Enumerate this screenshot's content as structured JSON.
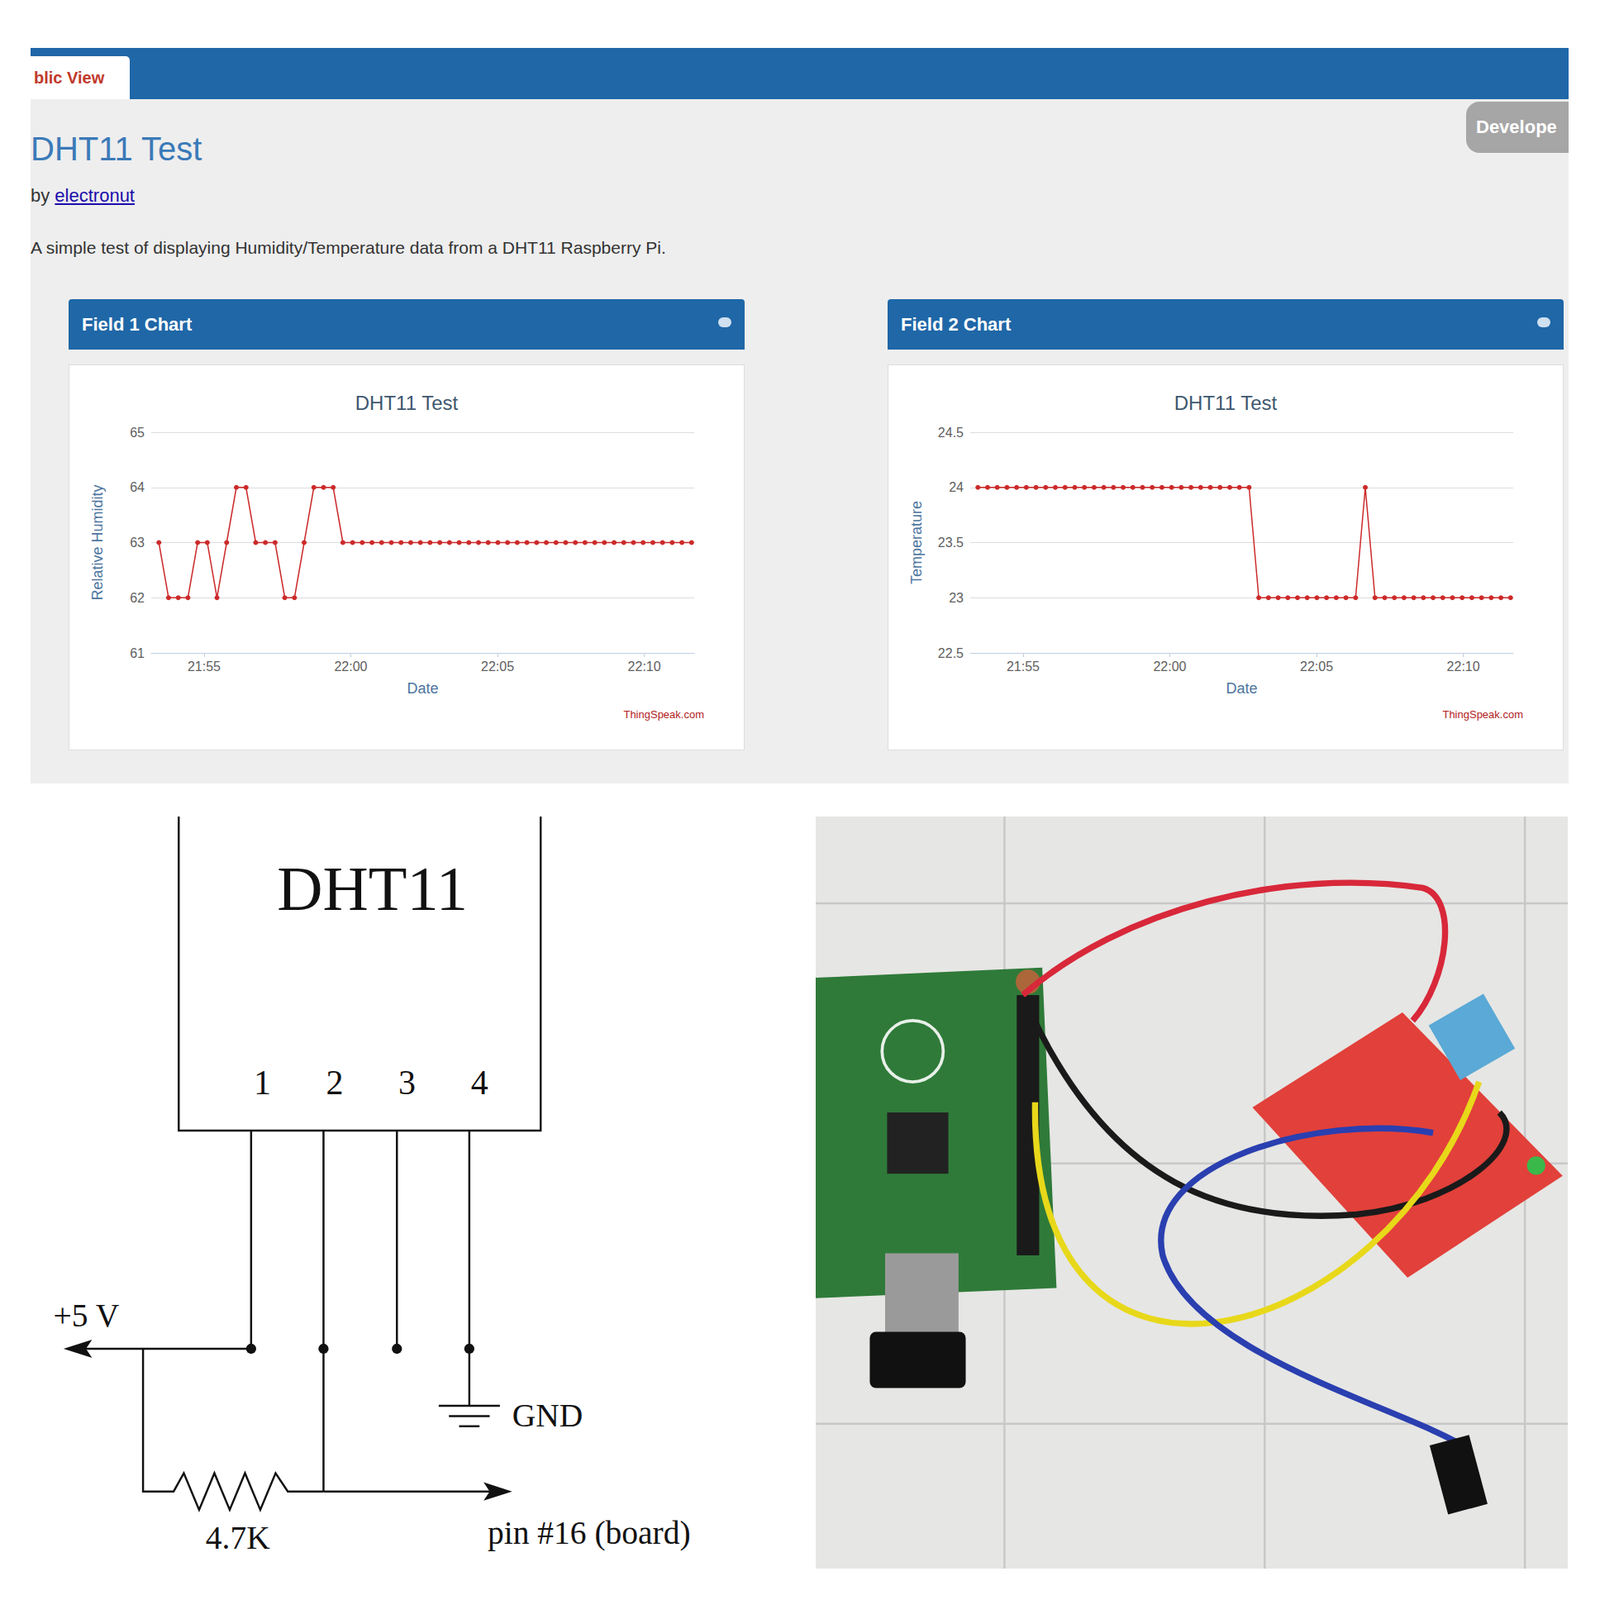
{
  "header": {
    "tab": "blic View",
    "button": "Develope",
    "title": "DHT11 Test",
    "byline": "by",
    "author": "electronut",
    "description": "A simple test of displaying Humidity/Temperature data from a DHT11 Raspberry Pi."
  },
  "chart_data": [
    {
      "type": "line",
      "panel_title": "Field 1 Chart",
      "title": "DHT11 Test",
      "x_label": "Date",
      "y_label": "Relative Humidity",
      "credit": "ThingSpeak.com",
      "x": [
        1313.46,
        1313.79,
        1314.12,
        1314.45,
        1314.78,
        1315.11,
        1315.44,
        1315.77,
        1316.1,
        1316.43,
        1316.76,
        1317.09,
        1317.42,
        1317.75,
        1318.08,
        1318.41,
        1318.74,
        1319.07,
        1319.4,
        1319.73,
        1320.06,
        1320.39,
        1320.72,
        1321.05,
        1321.38,
        1321.71,
        1322.04,
        1322.37,
        1322.7,
        1323.03,
        1323.36,
        1323.69,
        1324.02,
        1324.35,
        1324.68,
        1325.01,
        1325.34,
        1325.67,
        1326,
        1326.33,
        1326.66,
        1326.99,
        1327.32,
        1327.65,
        1327.98,
        1328.31,
        1328.64,
        1328.97,
        1329.3,
        1329.63,
        1329.96,
        1330.29,
        1330.62,
        1330.95,
        1331.28,
        1331.61
      ],
      "values": [
        63,
        62,
        62,
        62,
        63,
        63,
        62,
        63,
        64,
        64,
        63,
        63,
        63,
        62,
        62,
        63,
        64,
        64,
        64,
        63,
        63,
        63,
        63,
        63,
        63,
        63,
        63,
        63,
        63,
        63,
        63,
        63,
        63,
        63,
        63,
        63,
        63,
        63,
        63,
        63,
        63,
        63,
        63,
        63,
        63,
        63,
        63,
        63,
        63,
        63,
        63,
        63,
        63,
        63,
        63,
        63
      ],
      "color": "#cc2a2a",
      "marker": "circle",
      "xlim": [
        1313.2,
        1331.7
      ],
      "xticks": [
        {
          "value": 1315,
          "label": "21:55"
        },
        {
          "value": 1320,
          "label": "22:00"
        },
        {
          "value": 1325,
          "label": "22:05"
        },
        {
          "value": 1330,
          "label": "22:10"
        }
      ],
      "ylim": [
        61,
        65
      ],
      "yticks": [
        61,
        62,
        63,
        64,
        65
      ],
      "grid": "y"
    },
    {
      "type": "line",
      "panel_title": "Field 2 Chart",
      "title": "DHT11 Test",
      "x_label": "Date",
      "y_label": "Temperature",
      "credit": "ThingSpeak.com",
      "x": [
        1313.46,
        1313.79,
        1314.12,
        1314.45,
        1314.78,
        1315.11,
        1315.44,
        1315.77,
        1316.1,
        1316.43,
        1316.76,
        1317.09,
        1317.42,
        1317.75,
        1318.08,
        1318.41,
        1318.74,
        1319.07,
        1319.4,
        1319.73,
        1320.06,
        1320.39,
        1320.72,
        1321.05,
        1321.38,
        1321.71,
        1322.04,
        1322.37,
        1322.7,
        1323.03,
        1323.36,
        1323.69,
        1324.02,
        1324.35,
        1324.68,
        1325.01,
        1325.34,
        1325.67,
        1326,
        1326.33,
        1326.66,
        1326.99,
        1327.32,
        1327.65,
        1327.98,
        1328.31,
        1328.64,
        1328.97,
        1329.3,
        1329.63,
        1329.96,
        1330.29,
        1330.62,
        1330.95,
        1331.28,
        1331.61
      ],
      "values": [
        24,
        24,
        24,
        24,
        24,
        24,
        24,
        24,
        24,
        24,
        24,
        24,
        24,
        24,
        24,
        24,
        24,
        24,
        24,
        24,
        24,
        24,
        24,
        24,
        24,
        24,
        24,
        24,
        24,
        23,
        23,
        23,
        23,
        23,
        23,
        23,
        23,
        23,
        23,
        23,
        24,
        23,
        23,
        23,
        23,
        23,
        23,
        23,
        23,
        23,
        23,
        23,
        23,
        23,
        23,
        23
      ],
      "color": "#cc2a2a",
      "marker": "circle",
      "xlim": [
        1313.2,
        1331.7
      ],
      "xticks": [
        {
          "value": 1315,
          "label": "21:55"
        },
        {
          "value": 1320,
          "label": "22:00"
        },
        {
          "value": 1325,
          "label": "22:05"
        },
        {
          "value": 1330,
          "label": "22:10"
        }
      ],
      "ylim": [
        22.5,
        24.5
      ],
      "yticks": [
        22.5,
        23,
        23.5,
        24,
        24.5
      ],
      "grid": "y"
    }
  ],
  "schematic": {
    "title": "DHT11",
    "pins": [
      "1",
      "2",
      "3",
      "4"
    ],
    "supply": "+5 V",
    "ground": "GND",
    "resistor": "4.7K",
    "output": "pin #16 (board)"
  }
}
